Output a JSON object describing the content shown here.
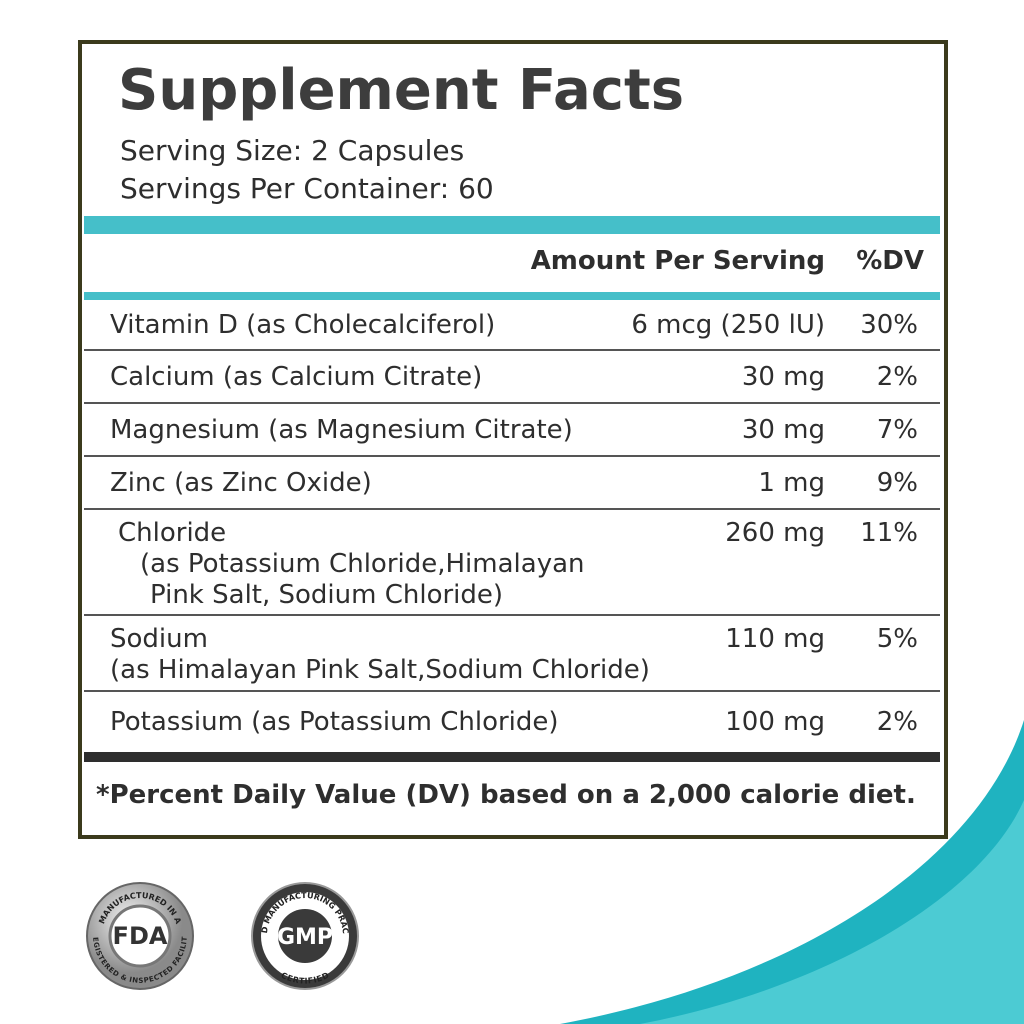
{
  "label": {
    "title": "Supplement Facts",
    "serving_size": "Serving Size: 2 Capsules",
    "servings_per_container": "Servings Per Container: 60",
    "header": {
      "amount": "Amount Per Serving",
      "dv": "%DV"
    },
    "rows": [
      {
        "name": [
          "Vitamin D (as Cholecalciferol)"
        ],
        "amount": "6 mcg (250 lU)",
        "dv": "30%"
      },
      {
        "name": [
          "Calcium (as Calcium Citrate)"
        ],
        "amount": "30 mg",
        "dv": "2%"
      },
      {
        "name": [
          "Magnesium (as Magnesium Citrate)"
        ],
        "amount": "30 mg",
        "dv": "7%"
      },
      {
        "name": [
          "Zinc (as Zinc Oxide)"
        ],
        "amount": "1 mg",
        "dv": "9%"
      },
      {
        "name": [
          "Chloride",
          "(as Potassium Chloride,Himalayan",
          "Pink Salt, Sodium Chloride)"
        ],
        "amount": "260 mg",
        "dv": "11%"
      },
      {
        "name": [
          "Sodium",
          "(as Himalayan Pink Salt,Sodium Chloride)"
        ],
        "amount": "110 mg",
        "dv": "5%"
      },
      {
        "name": [
          "Potassium (as Potassium Chloride)"
        ],
        "amount": "100 mg",
        "dv": "2%"
      }
    ],
    "footnote": "*Percent Daily Value (DV) based on a 2,000 calorie diet."
  },
  "badges": {
    "fda": {
      "top": "MANUFACTURED IN A",
      "center": "FDA",
      "bottom": "REGISTERED & INSPECTED FACILITY"
    },
    "gmp": {
      "top": "GOOD MANUFACTURING PRACTICE",
      "center": "GMP",
      "bottom": "CERTIFIED"
    }
  }
}
